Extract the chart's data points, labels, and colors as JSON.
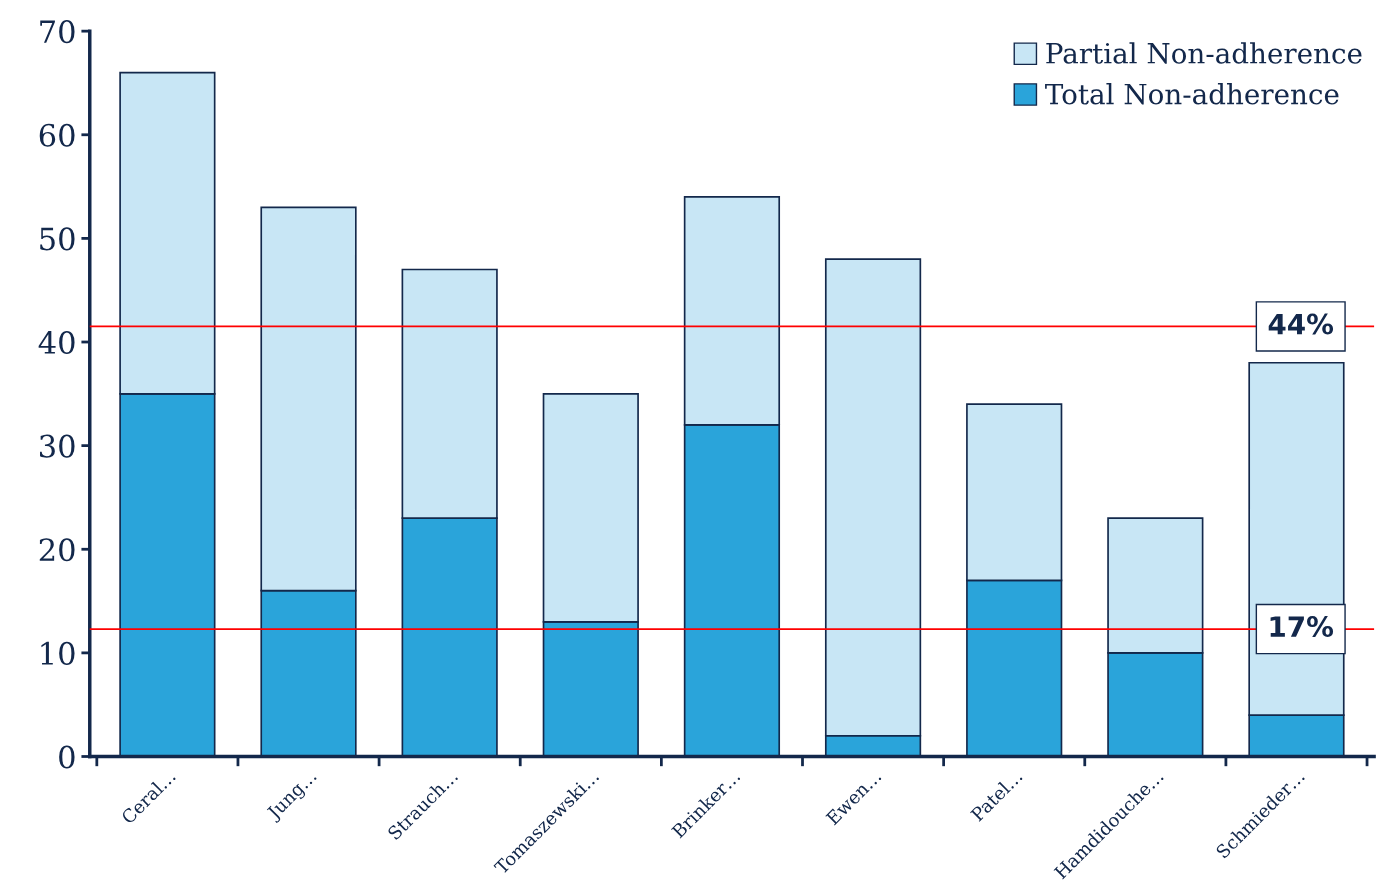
{
  "chart_data": {
    "type": "bar",
    "stacked": true,
    "categories": [
      "Ceral…",
      "Jung…",
      "Strauch…",
      "Tomaszewski…",
      "Brinker…",
      "Ewen…",
      "Patel…",
      "Hamdidouche…",
      "Schmieder…"
    ],
    "series": [
      {
        "name": "Total Non-adherence",
        "color": "#2aa4da",
        "values": [
          35,
          16,
          23,
          13,
          32,
          2,
          17,
          10,
          4
        ]
      },
      {
        "name": "Partial Non-adherence",
        "color": "#c8e6f5",
        "values": [
          31,
          37,
          24,
          22,
          22,
          46,
          17,
          13,
          34
        ]
      }
    ],
    "ylim": [
      0,
      70
    ],
    "yticks": [
      0,
      10,
      20,
      30,
      40,
      50,
      60,
      70
    ],
    "ref_lines": [
      {
        "axis": "y",
        "value": 41.5,
        "color": "#ff0000"
      },
      {
        "axis": "y",
        "value": 12.3,
        "color": "#ff0000"
      }
    ],
    "annotations": [
      {
        "text": "44%",
        "y": 41.5
      },
      {
        "text": "17%",
        "y": 12.3
      }
    ],
    "legend": "top right",
    "grid": false
  }
}
